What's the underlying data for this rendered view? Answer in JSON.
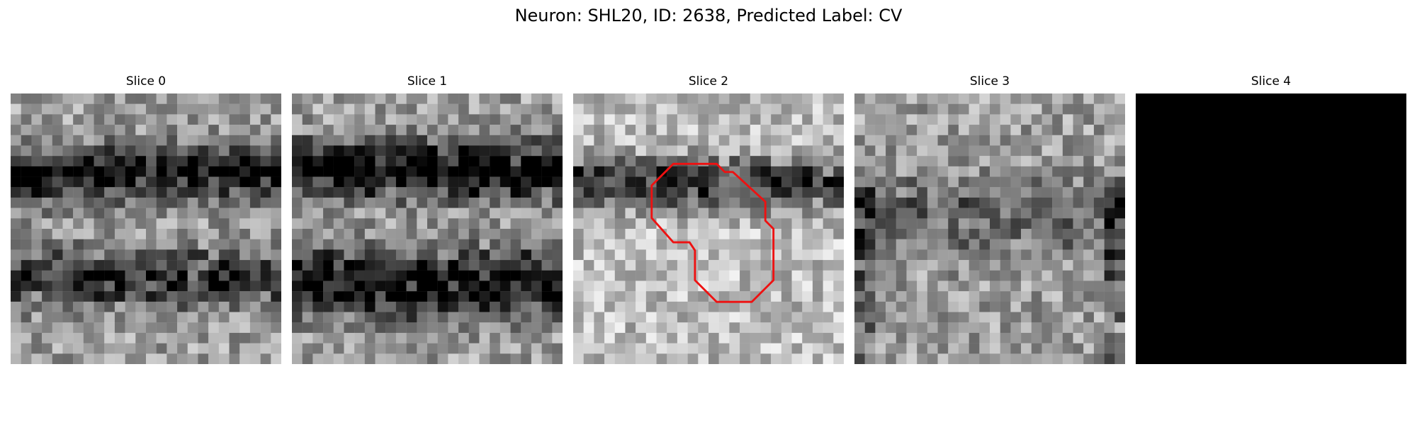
{
  "figure": {
    "title": "Neuron: SHL20, ID: 2638, Predicted Label: CV"
  },
  "slices": [
    {
      "title": "Slice 0",
      "blank": false,
      "seed": 11,
      "dark_bands": [
        [
          0.3,
          0.1,
          0.55
        ],
        [
          0.68,
          0.1,
          0.45
        ]
      ]
    },
    {
      "title": "Slice 1",
      "blank": false,
      "seed": 23,
      "dark_bands": [
        [
          0.28,
          0.1,
          0.7
        ],
        [
          0.7,
          0.12,
          0.6
        ]
      ]
    },
    {
      "title": "Slice 2",
      "blank": false,
      "seed": 37,
      "dark_bands": [
        [
          0.33,
          0.09,
          0.55
        ]
      ],
      "bright_bias": 0.12
    },
    {
      "title": "Slice 3",
      "blank": false,
      "seed": 51,
      "dark_bands": [
        [
          0.45,
          0.14,
          0.25
        ]
      ],
      "dark_edges": true
    },
    {
      "title": "Slice 4",
      "blank": true,
      "seed": 0,
      "dark_bands": []
    }
  ],
  "contour": {
    "slice_index": 2,
    "color": "#ee1111",
    "points": [
      [
        0.37,
        0.26
      ],
      [
        0.53,
        0.26
      ],
      [
        0.56,
        0.29
      ],
      [
        0.59,
        0.29
      ],
      [
        0.71,
        0.4
      ],
      [
        0.71,
        0.47
      ],
      [
        0.74,
        0.5
      ],
      [
        0.74,
        0.69
      ],
      [
        0.66,
        0.77
      ],
      [
        0.53,
        0.77
      ],
      [
        0.45,
        0.69
      ],
      [
        0.45,
        0.58
      ],
      [
        0.43,
        0.55
      ],
      [
        0.37,
        0.55
      ],
      [
        0.29,
        0.46
      ],
      [
        0.29,
        0.34
      ]
    ]
  },
  "grid_size": 26
}
